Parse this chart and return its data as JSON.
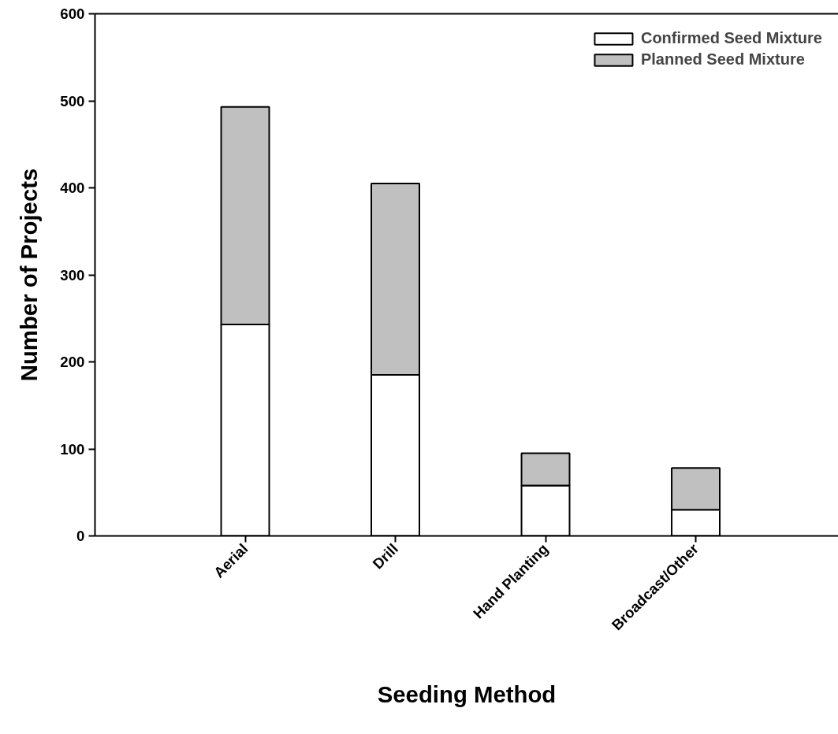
{
  "chart_data": {
    "type": "bar",
    "stacked": true,
    "xlabel": "Seeding Method",
    "ylabel": "Number of Projects",
    "categories": [
      "Aerial",
      "Drill",
      "Hand Planting",
      "Broadcast/Other"
    ],
    "series": [
      {
        "name": "Confirmed Seed Mixture",
        "color": "#ffffff",
        "values": [
          243,
          185,
          58,
          30
        ]
      },
      {
        "name": "Planned Seed Mixture",
        "color": "#c0c0c0",
        "values": [
          250,
          220,
          37,
          48
        ]
      }
    ],
    "ylim": [
      0,
      600
    ],
    "yticks": [
      0,
      100,
      200,
      300,
      400,
      500,
      600
    ],
    "grid": false,
    "legend": "top right"
  }
}
